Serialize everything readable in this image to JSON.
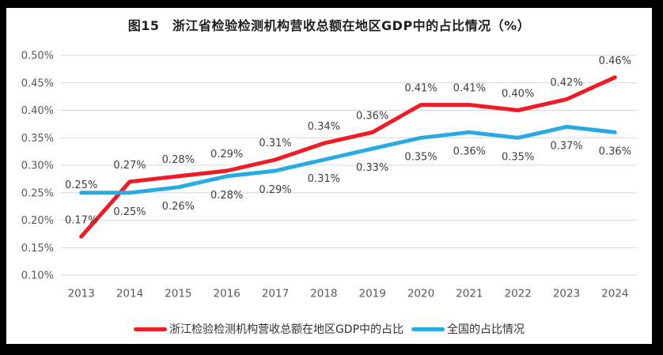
{
  "title": "图15　浙江省检验检测机构营收总额在地区GDP中的占比情况（%）",
  "frame": {
    "outer_bg": "#000000",
    "canvas_bg": "#ffffff"
  },
  "chart_data": {
    "type": "line",
    "categories": [
      "2013",
      "2014",
      "2015",
      "2016",
      "2017",
      "2018",
      "2019",
      "2020",
      "2021",
      "2022",
      "2023",
      "2024"
    ],
    "series": [
      {
        "name": "浙江检验检测机构营收总额在地区GDP中的占比",
        "color": "#ee1c25",
        "values": [
          0.17,
          0.27,
          0.28,
          0.29,
          0.31,
          0.34,
          0.36,
          0.41,
          0.41,
          0.4,
          0.42,
          0.46
        ],
        "labels": [
          "0.17%",
          "0.27%",
          "0.28%",
          "0.29%",
          "0.31%",
          "0.34%",
          "0.36%",
          "0.41%",
          "0.41%",
          "0.40%",
          "0.42%",
          "0.46%"
        ],
        "label_position": "above"
      },
      {
        "name": "全国的占比情况",
        "color": "#29abe2",
        "values": [
          0.25,
          0.25,
          0.26,
          0.28,
          0.29,
          0.31,
          0.33,
          0.35,
          0.36,
          0.35,
          0.37,
          0.36
        ],
        "labels": [
          "0.25%",
          "0.25%",
          "0.26%",
          "0.28%",
          "0.29%",
          "0.31%",
          "0.33%",
          "0.35%",
          "0.36%",
          "0.35%",
          "0.37%",
          "0.36%"
        ],
        "label_position": "below",
        "label_position_overrides": {
          "0": "above"
        }
      }
    ],
    "ylim": [
      0.1,
      0.5
    ],
    "ytick_step": 0.05,
    "ytick_labels": [
      "0.10%",
      "0.15%",
      "0.20%",
      "0.25%",
      "0.30%",
      "0.35%",
      "0.40%",
      "0.45%",
      "0.50%"
    ],
    "grid": true,
    "legend_position": "bottom",
    "gridline_color": "#d9d9d9",
    "axis_label_color": "#595959",
    "data_label_color": "#3f3f3f"
  }
}
